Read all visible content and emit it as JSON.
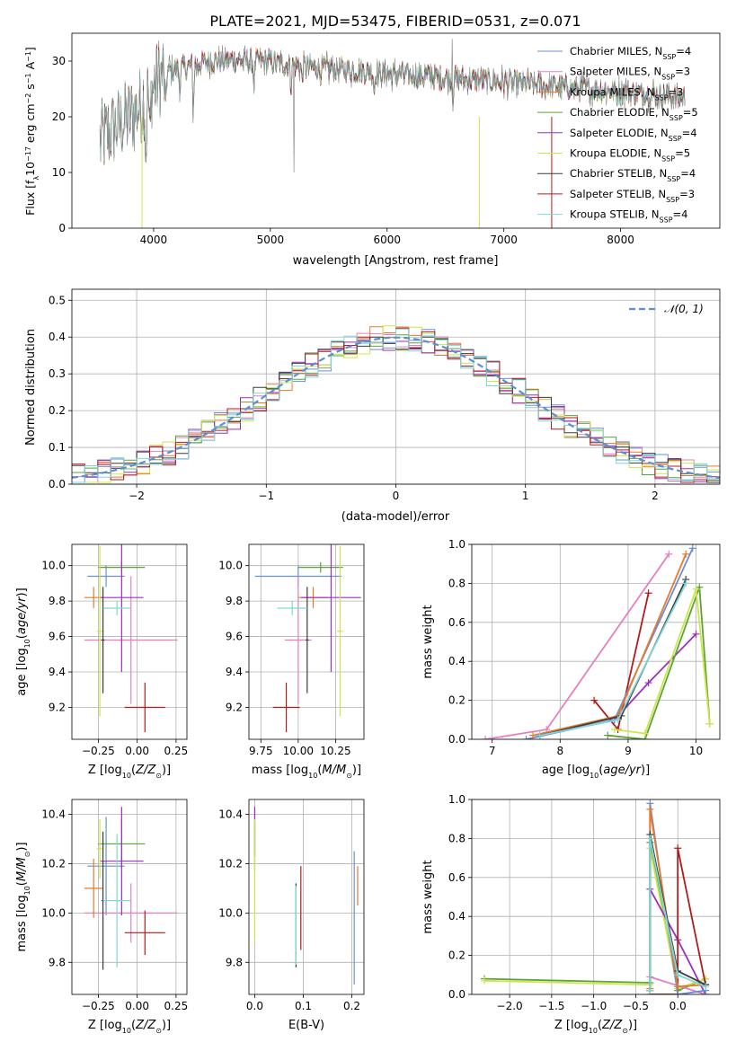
{
  "figure_title": "PLATE=2021, MJD=53475, FIBERID=0531, z=0.071",
  "colors": {
    "Chabrier MILES": "#6a8fd8",
    "Salpeter MILES": "#e57fc0",
    "Kroupa MILES": "#e8792b",
    "Chabrier ELODIE": "#5ba33a",
    "Salpeter ELODIE": "#9b2fbf",
    "Kroupa ELODIE": "#cde64a",
    "Chabrier STELIB": "#3b3b3b",
    "Salpeter STELIB": "#b01c1c",
    "Kroupa STELIB": "#7fd6d8",
    "normal_dashed": "#5b8fd4"
  },
  "chart_data": [
    {
      "id": "spectrum",
      "type": "line",
      "xlabel": "wavelength [Angstrom, rest frame]",
      "ylabel": "Flux [fλ10⁻¹⁷ erg cm⁻² s⁻¹ A⁻¹]",
      "xlim": [
        3300,
        8850
      ],
      "ylim": [
        0,
        35
      ],
      "xticks": [
        4000,
        5000,
        6000,
        7000,
        8000
      ],
      "yticks": [
        0,
        10,
        20,
        30
      ],
      "grid": false,
      "legend_position": "top-right",
      "legend": [
        {
          "name": "Chabrier MILES",
          "nssp": "4"
        },
        {
          "name": "Salpeter MILES",
          "nssp": "3"
        },
        {
          "name": "Kroupa MILES",
          "nssp": "3"
        },
        {
          "name": "Chabrier ELODIE",
          "nssp": "5"
        },
        {
          "name": "Salpeter ELODIE",
          "nssp": "4"
        },
        {
          "name": "Kroupa ELODIE",
          "nssp": "5"
        },
        {
          "name": "Chabrier STELIB",
          "nssp": "4"
        },
        {
          "name": "Salpeter STELIB",
          "nssp": "3"
        },
        {
          "name": "Kroupa STELIB",
          "nssp": "4"
        }
      ],
      "continuum": {
        "x": [
          3550,
          3700,
          3850,
          3950,
          4050,
          4150,
          4300,
          4500,
          4700,
          4900,
          5100,
          5300,
          5600,
          5900,
          6200,
          6500,
          6800,
          7100,
          7400,
          7700,
          8000,
          8300,
          8500
        ],
        "y": [
          16,
          18.5,
          21,
          24,
          27,
          28.5,
          29,
          30,
          30.2,
          30,
          29.5,
          29,
          28.5,
          28,
          27.5,
          27,
          26.5,
          26,
          25.5,
          25,
          24.5,
          24,
          23.5
        ]
      }
    },
    {
      "id": "residuals",
      "type": "histogram",
      "xlabel": "(data-model)/error",
      "ylabel": "Normed distribution",
      "xlim": [
        -2.5,
        2.5
      ],
      "ylim": [
        0,
        0.53
      ],
      "xticks": [
        -2,
        -1,
        0,
        1,
        2
      ],
      "yticks": [
        0.0,
        0.1,
        0.2,
        0.3,
        0.4,
        0.5
      ],
      "grid": true,
      "legend_position": "top-right",
      "legend": "𝒩(0, 1)",
      "bin_width": 0.1
    },
    {
      "id": "age_vs_Z",
      "type": "errorbar",
      "xlabel": "Z [log₁₀(Z/Z⊙)]",
      "ylabel": "age  [log₁₀(age/yr)]",
      "xlim": [
        -0.42,
        0.32
      ],
      "ylim": [
        9.02,
        10.12
      ],
      "xticks": [
        -0.25,
        0.0,
        0.25
      ],
      "yticks": [
        9.2,
        9.4,
        9.6,
        9.8,
        10.0
      ],
      "points": [
        {
          "model": "Chabrier MILES",
          "x": -0.2,
          "xerr": [
            0.12,
            0.12
          ],
          "y": 9.94,
          "yerr": [
            0.06,
            0.06
          ]
        },
        {
          "model": "Salpeter MILES",
          "x": -0.04,
          "xerr": [
            0.3,
            0.3
          ],
          "y": 9.58,
          "yerr": [
            0.36,
            0.36
          ]
        },
        {
          "model": "Kroupa MILES",
          "x": -0.28,
          "xerr": [
            0.06,
            0.06
          ],
          "y": 9.82,
          "yerr": [
            0.06,
            0.06
          ]
        },
        {
          "model": "Chabrier ELODIE",
          "x": -0.1,
          "xerr": [
            0.15,
            0.15
          ],
          "y": 9.99,
          "yerr": [
            0.03,
            0.03
          ]
        },
        {
          "model": "Salpeter ELODIE",
          "x": -0.1,
          "xerr": [
            0.14,
            0.14
          ],
          "y": 9.82,
          "yerr": [
            0.42,
            0.42
          ]
        },
        {
          "model": "Kroupa ELODIE",
          "x": -0.24,
          "xerr": [
            0.02,
            0.02
          ],
          "y": 9.63,
          "yerr": [
            0.48,
            0.48
          ]
        },
        {
          "model": "Chabrier STELIB",
          "x": -0.22,
          "xerr": [
            0.01,
            0.01
          ],
          "y": 9.58,
          "yerr": [
            0.3,
            0.3
          ]
        },
        {
          "model": "Salpeter STELIB",
          "x": 0.05,
          "xerr": [
            0.13,
            0.13
          ],
          "y": 9.2,
          "yerr": [
            0.14,
            0.14
          ]
        },
        {
          "model": "Kroupa STELIB",
          "x": -0.13,
          "xerr": [
            0.09,
            0.09
          ],
          "y": 9.76,
          "yerr": [
            0.04,
            0.04
          ]
        }
      ]
    },
    {
      "id": "age_vs_mass",
      "type": "errorbar",
      "xlabel": "mass [log₁₀(M/M⊙)]",
      "ylabel": "",
      "xlim": [
        9.67,
        10.44
      ],
      "ylim": [
        9.02,
        10.12
      ],
      "xticks": [
        9.75,
        10.0,
        10.25
      ],
      "yticks": [
        9.2,
        9.4,
        9.6,
        9.8,
        10.0
      ],
      "points": [
        {
          "model": "Chabrier MILES",
          "x": 10.0,
          "xerr": [
            0.29,
            0.29
          ],
          "y": 9.94,
          "yerr": [
            0.06,
            0.06
          ]
        },
        {
          "model": "Salpeter MILES",
          "x": 10.0,
          "xerr": [
            0.09,
            0.09
          ],
          "y": 9.58,
          "yerr": [
            0.36,
            0.36
          ]
        },
        {
          "model": "Kroupa MILES",
          "x": 10.1,
          "xerr": [
            0.1,
            0.1
          ],
          "y": 9.82,
          "yerr": [
            0.06,
            0.06
          ]
        },
        {
          "model": "Chabrier ELODIE",
          "x": 10.15,
          "xerr": [
            0.15,
            0.15
          ],
          "y": 9.99,
          "yerr": [
            0.03,
            0.03
          ]
        },
        {
          "model": "Salpeter ELODIE",
          "x": 10.22,
          "xerr": [
            0.2,
            0.2
          ],
          "y": 9.82,
          "yerr": [
            0.42,
            0.42
          ]
        },
        {
          "model": "Kroupa ELODIE",
          "x": 10.28,
          "xerr": [
            0.02,
            0.02
          ],
          "y": 9.63,
          "yerr": [
            0.48,
            0.48
          ]
        },
        {
          "model": "Chabrier STELIB",
          "x": 10.06,
          "xerr": [
            0.01,
            0.01
          ],
          "y": 9.58,
          "yerr": [
            0.3,
            0.3
          ]
        },
        {
          "model": "Salpeter STELIB",
          "x": 9.92,
          "xerr": [
            0.09,
            0.09
          ],
          "y": 9.2,
          "yerr": [
            0.14,
            0.14
          ]
        },
        {
          "model": "Kroupa STELIB",
          "x": 9.96,
          "xerr": [
            0.1,
            0.1
          ],
          "y": 9.76,
          "yerr": [
            0.04,
            0.04
          ]
        }
      ]
    },
    {
      "id": "massweight_vs_age",
      "type": "line",
      "xlabel": "age  [log₁₀(age/yr)]",
      "ylabel": "mass weight",
      "xlim": [
        6.7,
        10.35
      ],
      "ylim": [
        0,
        1
      ],
      "xticks": [
        7,
        8,
        9,
        10
      ],
      "yticks": [
        0.0,
        0.2,
        0.4,
        0.6,
        0.8,
        1.0
      ],
      "grid": true,
      "series": [
        {
          "model": "Salpeter MILES",
          "x": [
            6.9,
            7.8,
            9.6
          ],
          "y": [
            0.0,
            0.05,
            0.95
          ]
        },
        {
          "model": "Salpeter STELIB",
          "x": [
            8.5,
            8.85,
            9.3
          ],
          "y": [
            0.2,
            0.05,
            0.75
          ]
        },
        {
          "model": "Salpeter ELODIE",
          "x": [
            8.8,
            9.3,
            10.0
          ],
          "y": [
            0.1,
            0.29,
            0.54
          ]
        },
        {
          "model": "Chabrier MILES",
          "x": [
            7.5,
            8.8,
            9.95
          ],
          "y": [
            0.0,
            0.1,
            0.98
          ]
        },
        {
          "model": "Kroupa MILES",
          "x": [
            7.6,
            8.85,
            9.85
          ],
          "y": [
            0.02,
            0.12,
            0.95
          ]
        },
        {
          "model": "Chabrier STELIB",
          "x": [
            7.7,
            8.9,
            9.85
          ],
          "y": [
            0.02,
            0.12,
            0.82
          ]
        },
        {
          "model": "Kroupa STELIB",
          "x": [
            7.7,
            8.85,
            9.85
          ],
          "y": [
            0.02,
            0.1,
            0.8
          ]
        },
        {
          "model": "Chabrier ELODIE",
          "x": [
            8.7,
            9.25,
            10.05,
            10.2
          ],
          "y": [
            0.02,
            0.0,
            0.78,
            0.08
          ]
        },
        {
          "model": "Kroupa ELODIE",
          "x": [
            8.8,
            9.25,
            10.0,
            10.2
          ],
          "y": [
            0.05,
            0.03,
            0.77,
            0.08
          ]
        }
      ]
    },
    {
      "id": "mass_vs_Z",
      "type": "errorbar",
      "xlabel": "Z [log₁₀(Z/Z⊙)]",
      "ylabel": "mass [log₁₀(M/M⊙)]",
      "xlim": [
        -0.42,
        0.32
      ],
      "ylim": [
        9.67,
        10.46
      ],
      "xticks": [
        -0.25,
        0.0,
        0.25
      ],
      "yticks": [
        9.8,
        10.0,
        10.2,
        10.4
      ],
      "points": [
        {
          "model": "Chabrier MILES",
          "x": -0.2,
          "xerr": [
            0.12,
            0.12
          ],
          "y": 10.19,
          "yerr": [
            0.2,
            0.2
          ]
        },
        {
          "model": "Salpeter MILES",
          "x": -0.04,
          "xerr": [
            0.3,
            0.3
          ],
          "y": 10.0,
          "yerr": [
            0.12,
            0.12
          ]
        },
        {
          "model": "Kroupa MILES",
          "x": -0.28,
          "xerr": [
            0.06,
            0.06
          ],
          "y": 10.1,
          "yerr": [
            0.12,
            0.12
          ]
        },
        {
          "model": "Chabrier ELODIE",
          "x": -0.1,
          "xerr": [
            0.15,
            0.15
          ],
          "y": 10.28,
          "yerr": [
            0.1,
            0.1
          ]
        },
        {
          "model": "Salpeter ELODIE",
          "x": -0.1,
          "xerr": [
            0.14,
            0.14
          ],
          "y": 10.21,
          "yerr": [
            0.22,
            0.22
          ]
        },
        {
          "model": "Kroupa ELODIE",
          "x": -0.24,
          "xerr": [
            0.02,
            0.02
          ],
          "y": 10.26,
          "yerr": [
            0.12,
            0.12
          ]
        },
        {
          "model": "Chabrier STELIB",
          "x": -0.22,
          "xerr": [
            0.01,
            0.01
          ],
          "y": 10.05,
          "yerr": [
            0.28,
            0.28
          ]
        },
        {
          "model": "Salpeter STELIB",
          "x": 0.05,
          "xerr": [
            0.13,
            0.13
          ],
          "y": 9.92,
          "yerr": [
            0.09,
            0.09
          ]
        },
        {
          "model": "Kroupa STELIB",
          "x": -0.13,
          "xerr": [
            0.09,
            0.09
          ],
          "y": 10.05,
          "yerr": [
            0.27,
            0.27
          ]
        }
      ]
    },
    {
      "id": "mass_vs_ebv",
      "type": "errorbar",
      "xlabel": "E(B-V)",
      "ylabel": "",
      "xlim": [
        -0.012,
        0.225
      ],
      "ylim": [
        9.67,
        10.46
      ],
      "xticks": [
        0.0,
        0.1,
        0.2
      ],
      "yticks": [
        9.8,
        10.0,
        10.2,
        10.4
      ],
      "points": [
        {
          "model": "Chabrier MILES",
          "x": 0.205,
          "xerr": [
            0,
            0
          ],
          "y": 9.98,
          "yerr": [
            0.27,
            0.27
          ]
        },
        {
          "model": "Salpeter MILES",
          "x": 0.0,
          "xerr": [
            0,
            0
          ],
          "y": 10.33,
          "yerr": [
            0.1,
            0.1
          ]
        },
        {
          "model": "Kroupa MILES",
          "x": 0.212,
          "xerr": [
            0,
            0
          ],
          "y": 10.11,
          "yerr": [
            0.08,
            0.08
          ]
        },
        {
          "model": "Chabrier ELODIE",
          "x": 0.0,
          "xerr": [
            0,
            0
          ],
          "y": 10.27,
          "yerr": [
            0.1,
            0.1
          ]
        },
        {
          "model": "Salpeter ELODIE",
          "x": 0.0,
          "xerr": [
            0,
            0
          ],
          "y": 10.33,
          "yerr": [
            0.1,
            0.1
          ]
        },
        {
          "model": "Kroupa ELODIE",
          "x": 0.0,
          "xerr": [
            0,
            0
          ],
          "y": 10.13,
          "yerr": [
            0.25,
            0.25
          ]
        },
        {
          "model": "Chabrier STELIB",
          "x": 0.085,
          "xerr": [
            0,
            0
          ],
          "y": 9.95,
          "yerr": [
            0.17,
            0.17
          ]
        },
        {
          "model": "Salpeter STELIB",
          "x": 0.095,
          "xerr": [
            0,
            0
          ],
          "y": 10.02,
          "yerr": [
            0.17,
            0.17
          ]
        },
        {
          "model": "Kroupa STELIB",
          "x": 0.085,
          "xerr": [
            0,
            0
          ],
          "y": 9.95,
          "yerr": [
            0.16,
            0.16
          ]
        }
      ]
    },
    {
      "id": "massweight_vs_Z",
      "type": "line",
      "xlabel": "Z [log₁₀(Z/Z⊙)]",
      "ylabel": "mass weight",
      "xlim": [
        -2.45,
        0.5
      ],
      "ylim": [
        0,
        1
      ],
      "xticks": [
        -2.0,
        -1.5,
        -1.0,
        -0.5,
        0.0
      ],
      "yticks": [
        0.0,
        0.2,
        0.4,
        0.6,
        0.8,
        1.0
      ],
      "grid": true,
      "series": [
        {
          "model": "Chabrier ELODIE",
          "x": [
            -2.3,
            -0.33,
            -0.33,
            0.0,
            0.33
          ],
          "y": [
            0.08,
            0.06,
            0.78,
            0.02,
            0.08
          ]
        },
        {
          "model": "Kroupa ELODIE",
          "x": [
            -2.3,
            -0.33,
            -0.33,
            0.0,
            0.33
          ],
          "y": [
            0.07,
            0.05,
            0.75,
            0.03,
            0.08
          ]
        },
        {
          "model": "Salpeter ELODIE",
          "x": [
            -0.33,
            0.0,
            0.33
          ],
          "y": [
            0.54,
            0.28,
            0.0
          ]
        },
        {
          "model": "Salpeter STELIB",
          "x": [
            -0.33,
            0.0,
            0.0,
            0.33
          ],
          "y": [
            0.0,
            0.0,
            0.75,
            0.05
          ]
        },
        {
          "model": "Salpeter MILES",
          "x": [
            -0.33,
            0.33
          ],
          "y": [
            0.09,
            0.0
          ]
        },
        {
          "model": "Chabrier MILES",
          "x": [
            -0.33,
            -0.33,
            0.0,
            0.33
          ],
          "y": [
            0.02,
            0.98,
            0.0,
            0.02
          ]
        },
        {
          "model": "Kroupa MILES",
          "x": [
            -0.33,
            -0.33,
            0.0,
            0.33
          ],
          "y": [
            0.03,
            0.95,
            0.04,
            0.05
          ]
        },
        {
          "model": "Chabrier STELIB",
          "x": [
            -0.33,
            -0.33,
            0.0,
            0.33
          ],
          "y": [
            0.02,
            0.82,
            0.12,
            0.05
          ]
        },
        {
          "model": "Kroupa STELIB",
          "x": [
            -0.33,
            -0.33,
            0.0,
            0.33
          ],
          "y": [
            0.02,
            0.8,
            0.1,
            0.04
          ]
        }
      ]
    }
  ]
}
